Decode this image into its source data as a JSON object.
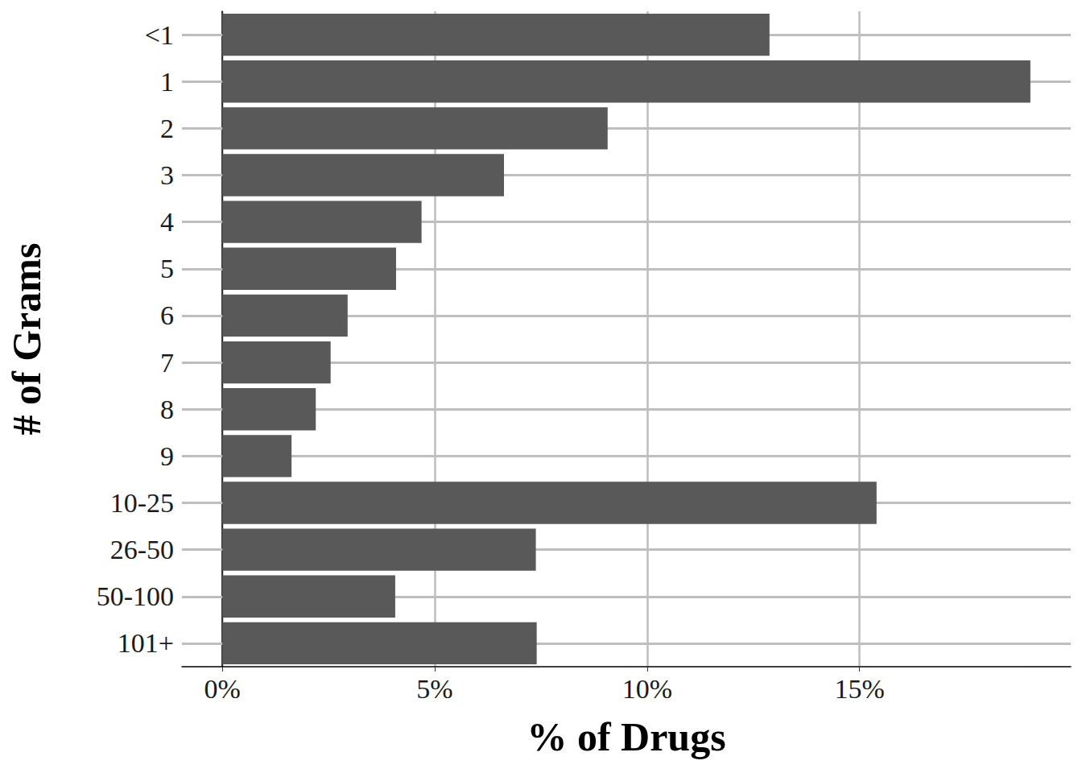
{
  "chart_data": {
    "type": "bar",
    "orientation": "horizontal",
    "x_label": "% of Drugs",
    "y_label": "# of Grams",
    "categories": [
      "<1",
      "1",
      "2",
      "3",
      "4",
      "5",
      "6",
      "7",
      "8",
      "9",
      "10-25",
      "26-50",
      "50-100",
      "101+"
    ],
    "values": [
      12.88,
      19.02,
      9.07,
      6.63,
      4.69,
      4.09,
      2.95,
      2.55,
      2.2,
      1.63,
      15.4,
      7.38,
      4.07,
      7.4
    ],
    "color": "#595959",
    "xlim": [
      -0.95,
      19.97
    ],
    "xticks": [
      {
        "value": 0,
        "label": "0%"
      },
      {
        "value": 5,
        "label": "5%"
      },
      {
        "value": 10,
        "label": "10%"
      },
      {
        "value": 15,
        "label": "15%"
      }
    ],
    "grid": true
  }
}
